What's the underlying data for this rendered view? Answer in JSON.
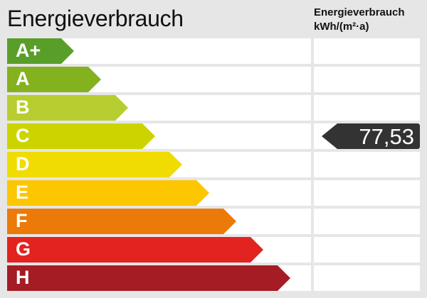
{
  "title": "Energieverbrauch",
  "column_header": {
    "line1": "Energieverbrauch",
    "line2": "kWh/(m²·a)"
  },
  "classes": [
    {
      "label": "A+",
      "color": "#5a9e2a"
    },
    {
      "label": "A",
      "color": "#84b11e"
    },
    {
      "label": "B",
      "color": "#b8cd30"
    },
    {
      "label": "C",
      "color": "#ccd400"
    },
    {
      "label": "D",
      "color": "#f0dc00"
    },
    {
      "label": "E",
      "color": "#fcc600"
    },
    {
      "label": "F",
      "color": "#eb7a08"
    },
    {
      "label": "G",
      "color": "#e2231f"
    },
    {
      "label": "H",
      "color": "#a51c24"
    }
  ],
  "value": {
    "text": "77,53",
    "class": "C",
    "color": "#333333"
  }
}
